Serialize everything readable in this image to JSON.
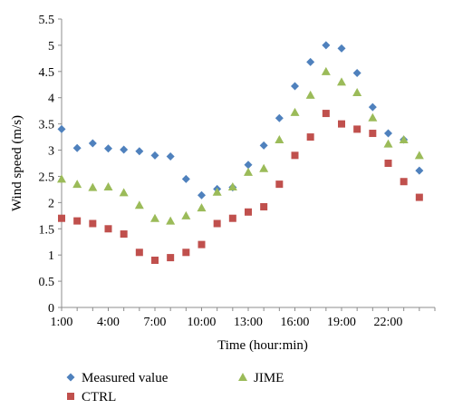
{
  "chart_data": {
    "type": "scatter",
    "title": "",
    "xlabel": "Time (hour:min)",
    "ylabel": "Wind speed (m/s)",
    "ylim": [
      0,
      5.5
    ],
    "y_ticks": [
      "0",
      "0.5",
      "1",
      "1.5",
      "2",
      "2.5",
      "3",
      "3.5",
      "4",
      "4.5",
      "5",
      "5.5"
    ],
    "x_tick_labels": [
      "1:00",
      "4:00",
      "7:00",
      "10:00",
      "13:00",
      "16:00",
      "19:00",
      "22:00"
    ],
    "x": [
      "1:00",
      "2:00",
      "3:00",
      "4:00",
      "5:00",
      "6:00",
      "7:00",
      "8:00",
      "9:00",
      "10:00",
      "11:00",
      "12:00",
      "13:00",
      "14:00",
      "15:00",
      "16:00",
      "17:00",
      "18:00",
      "19:00",
      "20:00",
      "21:00",
      "22:00",
      "23:00",
      "24:00"
    ],
    "grid": false,
    "legend_position": "bottom",
    "series": [
      {
        "name": "Measured value",
        "marker": "diamond",
        "color": "#4f81bd",
        "values": [
          3.4,
          3.04,
          3.13,
          3.03,
          3.01,
          2.98,
          2.9,
          2.88,
          2.45,
          2.14,
          2.26,
          2.29,
          2.72,
          3.09,
          3.61,
          4.22,
          4.68,
          5.0,
          4.94,
          4.47,
          3.82,
          3.32,
          3.2,
          2.61
        ]
      },
      {
        "name": "CTRL",
        "marker": "square",
        "color": "#c0504d",
        "values": [
          1.7,
          1.65,
          1.6,
          1.5,
          1.4,
          1.05,
          0.9,
          0.95,
          1.05,
          1.2,
          1.6,
          1.7,
          1.82,
          1.92,
          2.35,
          2.9,
          3.25,
          3.7,
          3.5,
          3.4,
          3.32,
          2.75,
          2.4,
          2.1
        ]
      },
      {
        "name": "JIME",
        "marker": "triangle",
        "color": "#9bbb59",
        "values": [
          2.45,
          2.35,
          2.29,
          2.3,
          2.19,
          1.95,
          1.7,
          1.65,
          1.75,
          1.9,
          2.2,
          2.3,
          2.58,
          2.65,
          3.2,
          3.72,
          4.05,
          4.5,
          4.3,
          4.1,
          3.62,
          3.12,
          3.2,
          2.9
        ]
      }
    ]
  }
}
